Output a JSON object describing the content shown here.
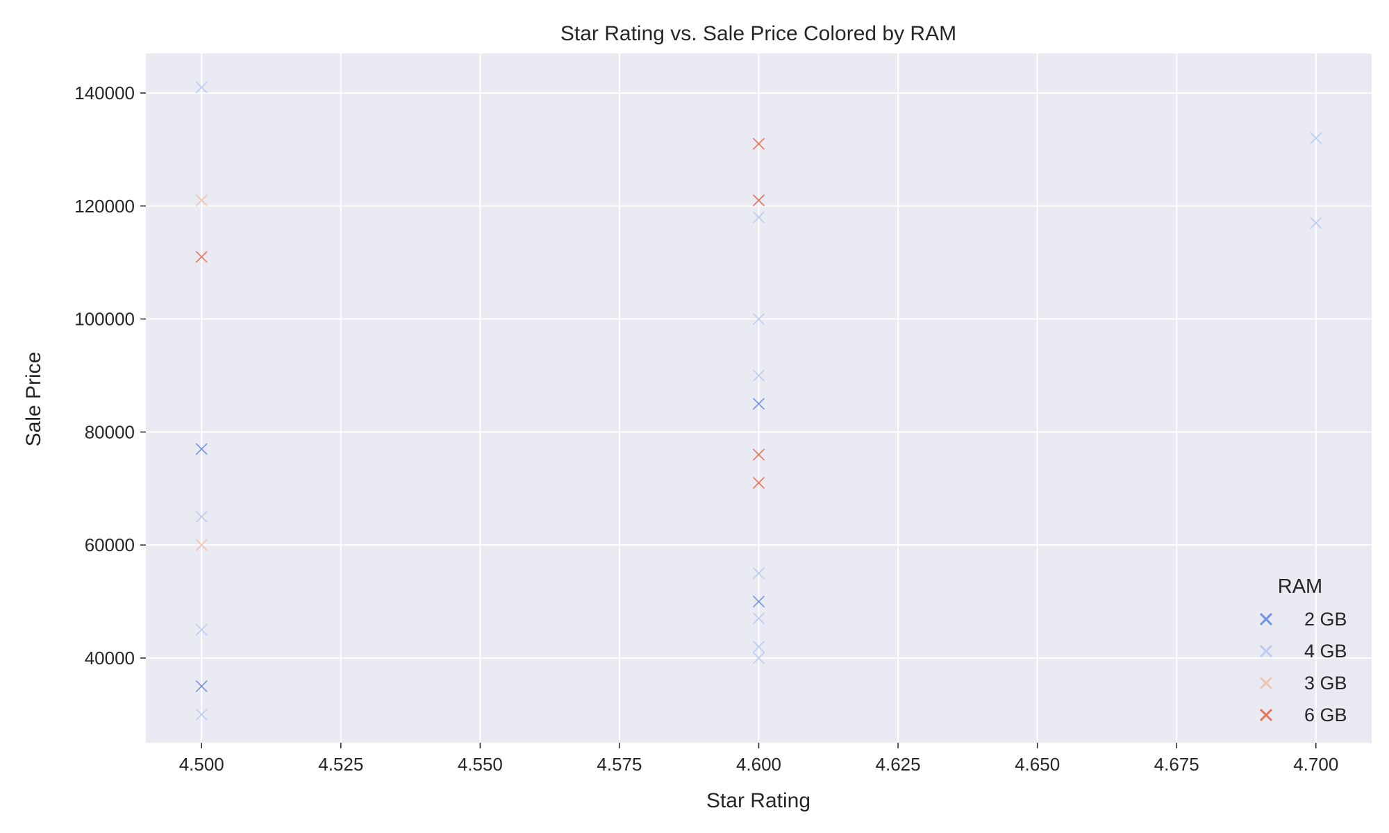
{
  "chart_data": {
    "type": "scatter",
    "title": "Star Rating vs. Sale Price Colored by RAM",
    "xlabel": "Star Rating",
    "ylabel": "Sale Price",
    "xlim": [
      4.49,
      4.71
    ],
    "ylim": [
      25000,
      147000
    ],
    "xticks": [
      "4.500",
      "4.525",
      "4.550",
      "4.575",
      "4.600",
      "4.625",
      "4.650",
      "4.675",
      "4.700"
    ],
    "yticks": [
      "40000",
      "60000",
      "80000",
      "100000",
      "120000",
      "140000"
    ],
    "grid": true,
    "marker": "x",
    "legend": {
      "title": "RAM",
      "placement": "bottom-right"
    },
    "series": [
      {
        "name": "2 GB",
        "color": "#7092e8",
        "points": [
          [
            4.5,
            77000
          ],
          [
            4.5,
            35000
          ],
          [
            4.6,
            85000
          ],
          [
            4.6,
            50000
          ]
        ]
      },
      {
        "name": "4 GB",
        "color": "#b9cdf2",
        "points": [
          [
            4.5,
            141000
          ],
          [
            4.5,
            65000
          ],
          [
            4.5,
            45000
          ],
          [
            4.5,
            30000
          ],
          [
            4.6,
            118000
          ],
          [
            4.6,
            100000
          ],
          [
            4.6,
            90000
          ],
          [
            4.6,
            55000
          ],
          [
            4.6,
            47000
          ],
          [
            4.6,
            42000
          ],
          [
            4.6,
            40000
          ],
          [
            4.7,
            132000
          ],
          [
            4.7,
            117000
          ]
        ]
      },
      {
        "name": "3 GB",
        "color": "#f2c4b0",
        "points": [
          [
            4.5,
            121000
          ],
          [
            4.5,
            60000
          ]
        ]
      },
      {
        "name": "6 GB",
        "color": "#e8735a",
        "points": [
          [
            4.5,
            111000
          ],
          [
            4.6,
            131000
          ],
          [
            4.6,
            121000
          ],
          [
            4.6,
            76000
          ],
          [
            4.6,
            71000
          ]
        ]
      }
    ]
  }
}
